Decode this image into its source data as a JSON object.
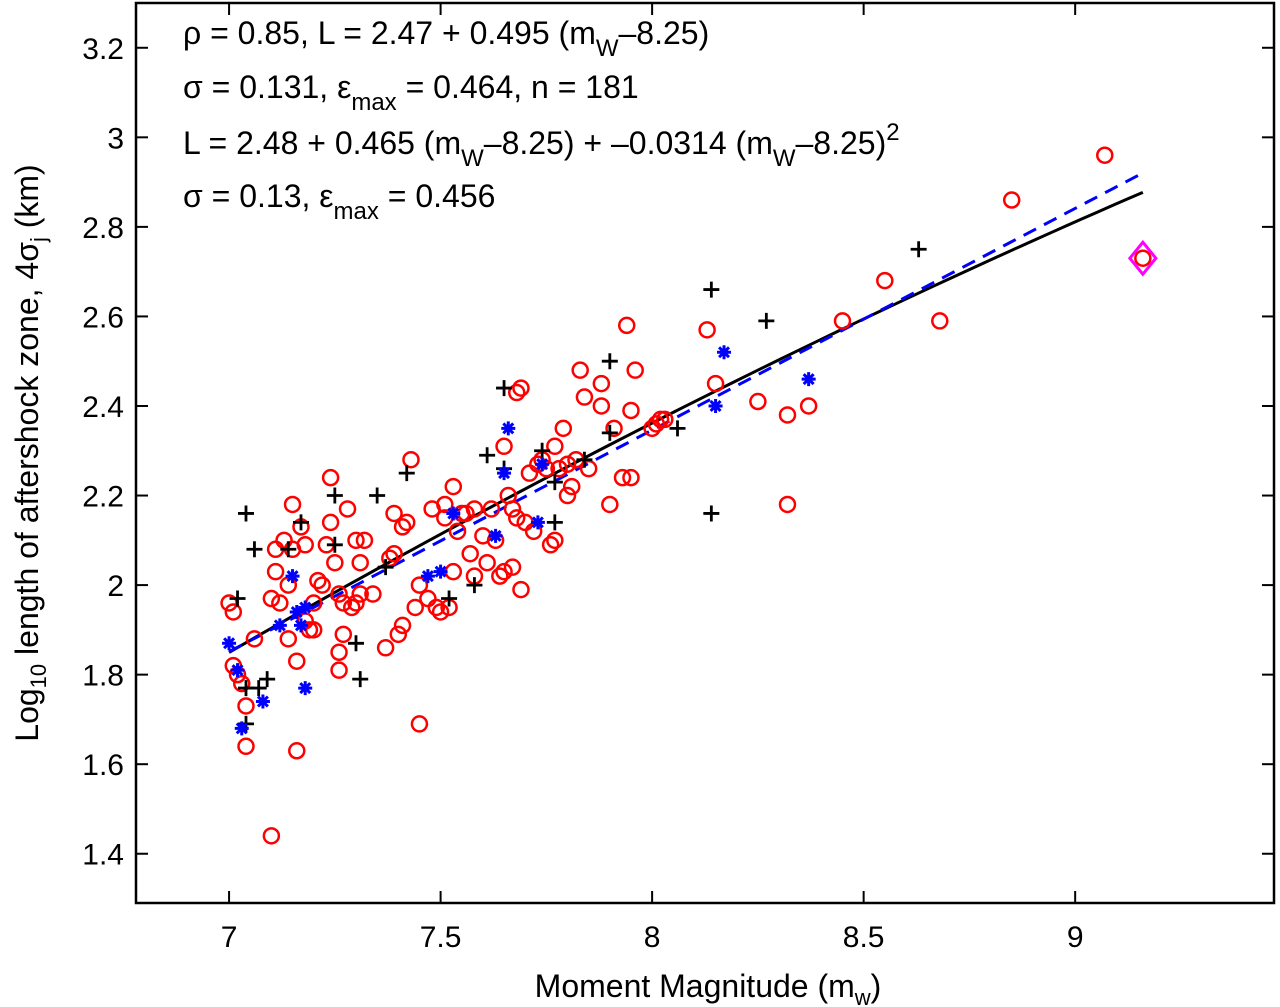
{
  "chart_data": {
    "type": "scatter",
    "xlabel": "Moment Magnitude (m",
    "xlabel_sub": "w",
    "xlabel_end": ")",
    "ylabel_pre": "Log",
    "ylabel_sub": "10",
    "ylabel_mid": " length of aftershock zone, 4σ",
    "ylabel_sub2": "j",
    "ylabel_end": " (km)",
    "xlim": [
      6.78,
      9.47
    ],
    "ylim": [
      1.29,
      3.3
    ],
    "x_ticks": [
      7,
      7.5,
      8,
      8.5,
      9
    ],
    "x_tick_labels": [
      "7",
      "7.5",
      "8",
      "8.5",
      "9"
    ],
    "y_ticks": [
      1.4,
      1.6,
      1.8,
      2.0,
      2.2,
      2.4,
      2.6,
      2.8,
      3.0,
      3.2
    ],
    "y_tick_labels": [
      "1.4",
      "1.6",
      "1.8",
      "2",
      "2.2",
      "2.4",
      "2.6",
      "2.8",
      "3",
      "3.2"
    ],
    "grid": false,
    "annotations": {
      "line1_a": "ρ = 0.85,  L = 2.47 + 0.495 (m",
      "line1_sub": "W",
      "line1_b": "–8.25)",
      "line2_a": "σ = 0.131,  ε",
      "line2_sub": "max",
      "line2_b": " = 0.464,  n = 181",
      "line3_a": "L = 2.48 + 0.465 (m",
      "line3_sub1": "W",
      "line3_b": "–8.25) + –0.0314 (m",
      "line3_sub2": "W",
      "line3_c": "–8.25)",
      "line3_sup": "2",
      "line4_a": "σ = 0.13, ε",
      "line4_sub": "max",
      "line4_b": " = 0.456"
    },
    "fits": {
      "linear": {
        "intercept": 2.47,
        "slope": 0.495,
        "center": 8.25,
        "x_range": [
          7.0,
          9.16
        ],
        "color": "#0000ff",
        "style": "dashed"
      },
      "quadratic": {
        "intercept": 2.48,
        "slope": 0.465,
        "quad": -0.0314,
        "center": 8.25,
        "x_range": [
          7.0,
          9.16
        ],
        "color": "#000000",
        "style": "solid"
      }
    },
    "series": [
      {
        "marker": "circle",
        "color": "#ff0000",
        "points": [
          [
            7.0,
            1.96
          ],
          [
            7.01,
            1.94
          ],
          [
            7.01,
            1.82
          ],
          [
            7.02,
            1.8
          ],
          [
            7.03,
            1.78
          ],
          [
            7.04,
            1.73
          ],
          [
            7.04,
            1.64
          ],
          [
            7.06,
            1.88
          ],
          [
            7.1,
            1.97
          ],
          [
            7.1,
            1.44
          ],
          [
            7.11,
            2.03
          ],
          [
            7.11,
            2.08
          ],
          [
            7.12,
            1.96
          ],
          [
            7.13,
            2.1
          ],
          [
            7.14,
            2.0
          ],
          [
            7.14,
            1.88
          ],
          [
            7.15,
            2.18
          ],
          [
            7.15,
            2.08
          ],
          [
            7.16,
            1.83
          ],
          [
            7.16,
            1.63
          ],
          [
            7.17,
            2.13
          ],
          [
            7.18,
            2.09
          ],
          [
            7.18,
            1.92
          ],
          [
            7.19,
            1.9
          ],
          [
            7.2,
            1.96
          ],
          [
            7.2,
            1.9
          ],
          [
            7.21,
            2.01
          ],
          [
            7.22,
            2.0
          ],
          [
            7.23,
            2.09
          ],
          [
            7.24,
            2.14
          ],
          [
            7.24,
            2.24
          ],
          [
            7.25,
            2.05
          ],
          [
            7.26,
            1.98
          ],
          [
            7.26,
            1.85
          ],
          [
            7.26,
            1.81
          ],
          [
            7.27,
            1.96
          ],
          [
            7.27,
            1.89
          ],
          [
            7.28,
            2.17
          ],
          [
            7.29,
            1.95
          ],
          [
            7.3,
            2.1
          ],
          [
            7.3,
            1.96
          ],
          [
            7.31,
            2.05
          ],
          [
            7.31,
            1.98
          ],
          [
            7.32,
            2.1
          ],
          [
            7.34,
            1.98
          ],
          [
            7.37,
            1.86
          ],
          [
            7.38,
            2.06
          ],
          [
            7.39,
            2.07
          ],
          [
            7.39,
            2.16
          ],
          [
            7.4,
            1.89
          ],
          [
            7.41,
            2.13
          ],
          [
            7.41,
            1.91
          ],
          [
            7.42,
            2.14
          ],
          [
            7.43,
            2.28
          ],
          [
            7.44,
            1.95
          ],
          [
            7.45,
            1.69
          ],
          [
            7.45,
            2.0
          ],
          [
            7.47,
            1.97
          ],
          [
            7.48,
            2.17
          ],
          [
            7.49,
            1.95
          ],
          [
            7.5,
            1.94
          ],
          [
            7.51,
            2.15
          ],
          [
            7.51,
            2.18
          ],
          [
            7.52,
            1.95
          ],
          [
            7.53,
            2.22
          ],
          [
            7.53,
            2.03
          ],
          [
            7.54,
            2.12
          ],
          [
            7.55,
            2.16
          ],
          [
            7.56,
            2.16
          ],
          [
            7.57,
            2.07
          ],
          [
            7.58,
            2.02
          ],
          [
            7.58,
            2.17
          ],
          [
            7.6,
            2.11
          ],
          [
            7.61,
            2.05
          ],
          [
            7.62,
            2.17
          ],
          [
            7.63,
            2.1
          ],
          [
            7.64,
            2.02
          ],
          [
            7.65,
            2.31
          ],
          [
            7.65,
            2.03
          ],
          [
            7.66,
            2.2
          ],
          [
            7.67,
            2.04
          ],
          [
            7.67,
            2.17
          ],
          [
            7.68,
            2.15
          ],
          [
            7.68,
            2.43
          ],
          [
            7.69,
            2.44
          ],
          [
            7.69,
            1.99
          ],
          [
            7.7,
            2.14
          ],
          [
            7.71,
            2.25
          ],
          [
            7.72,
            2.12
          ],
          [
            7.73,
            2.27
          ],
          [
            7.74,
            2.28
          ],
          [
            7.75,
            2.26
          ],
          [
            7.76,
            2.09
          ],
          [
            7.77,
            2.31
          ],
          [
            7.77,
            2.1
          ],
          [
            7.78,
            2.26
          ],
          [
            7.79,
            2.35
          ],
          [
            7.8,
            2.2
          ],
          [
            7.8,
            2.27
          ],
          [
            7.81,
            2.22
          ],
          [
            7.82,
            2.28
          ],
          [
            7.83,
            2.48
          ],
          [
            7.84,
            2.42
          ],
          [
            7.85,
            2.26
          ],
          [
            7.88,
            2.45
          ],
          [
            7.88,
            2.4
          ],
          [
            7.9,
            2.18
          ],
          [
            7.91,
            2.35
          ],
          [
            7.93,
            2.24
          ],
          [
            7.94,
            2.58
          ],
          [
            7.95,
            2.39
          ],
          [
            7.95,
            2.24
          ],
          [
            7.96,
            2.48
          ],
          [
            8.0,
            2.35
          ],
          [
            8.01,
            2.36
          ],
          [
            8.02,
            2.37
          ],
          [
            8.03,
            2.37
          ],
          [
            8.13,
            2.57
          ],
          [
            8.15,
            2.45
          ],
          [
            8.25,
            2.41
          ],
          [
            8.32,
            2.18
          ],
          [
            8.32,
            2.38
          ],
          [
            8.37,
            2.4
          ],
          [
            8.45,
            2.59
          ],
          [
            8.55,
            2.68
          ],
          [
            8.68,
            2.59
          ],
          [
            8.85,
            2.86
          ],
          [
            9.07,
            2.96
          ],
          [
            9.16,
            2.73
          ]
        ]
      },
      {
        "marker": "plus",
        "color": "#000000",
        "points": [
          [
            7.02,
            1.97
          ],
          [
            7.04,
            2.16
          ],
          [
            7.04,
            1.69
          ],
          [
            7.04,
            1.77
          ],
          [
            7.06,
            2.08
          ],
          [
            7.07,
            1.77
          ],
          [
            7.09,
            1.79
          ],
          [
            7.14,
            2.08
          ],
          [
            7.17,
            2.14
          ],
          [
            7.25,
            2.2
          ],
          [
            7.25,
            2.09
          ],
          [
            7.3,
            1.87
          ],
          [
            7.31,
            1.79
          ],
          [
            7.35,
            2.2
          ],
          [
            7.37,
            2.04
          ],
          [
            7.42,
            2.25
          ],
          [
            7.52,
            1.97
          ],
          [
            7.58,
            2.0
          ],
          [
            7.61,
            2.29
          ],
          [
            7.65,
            2.44
          ],
          [
            7.65,
            2.26
          ],
          [
            7.74,
            2.3
          ],
          [
            7.77,
            2.14
          ],
          [
            7.77,
            2.23
          ],
          [
            7.84,
            2.28
          ],
          [
            7.9,
            2.5
          ],
          [
            7.9,
            2.34
          ],
          [
            8.06,
            2.35
          ],
          [
            8.14,
            2.66
          ],
          [
            8.14,
            2.16
          ],
          [
            8.27,
            2.59
          ],
          [
            8.63,
            2.75
          ]
        ]
      },
      {
        "marker": "star",
        "color": "#0000ff",
        "points": [
          [
            7.0,
            1.87
          ],
          [
            7.02,
            1.81
          ],
          [
            7.03,
            1.68
          ],
          [
            7.08,
            1.74
          ],
          [
            7.12,
            1.91
          ],
          [
            7.15,
            2.02
          ],
          [
            7.16,
            1.94
          ],
          [
            7.17,
            1.91
          ],
          [
            7.18,
            1.95
          ],
          [
            7.18,
            1.77
          ],
          [
            7.47,
            2.02
          ],
          [
            7.5,
            2.03
          ],
          [
            7.53,
            2.16
          ],
          [
            7.63,
            2.11
          ],
          [
            7.65,
            2.25
          ],
          [
            7.66,
            2.35
          ],
          [
            7.73,
            2.14
          ],
          [
            7.74,
            2.27
          ],
          [
            8.15,
            2.4
          ],
          [
            8.17,
            2.52
          ],
          [
            8.37,
            2.46
          ]
        ]
      },
      {
        "marker": "diamond",
        "color": "#ff00ff",
        "points": [
          [
            9.16,
            2.73
          ]
        ]
      }
    ]
  }
}
